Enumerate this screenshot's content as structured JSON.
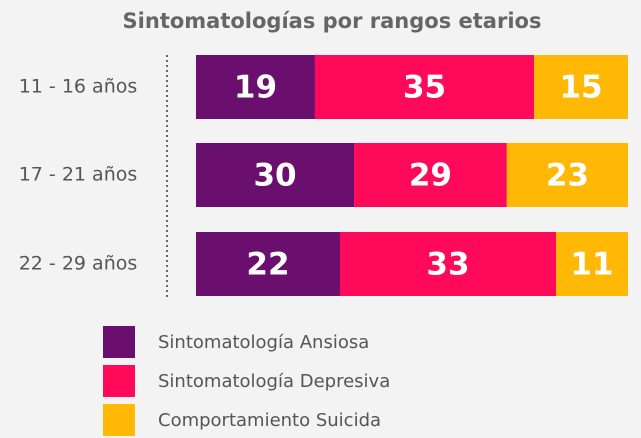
{
  "chart_data": {
    "type": "bar",
    "orientation": "horizontal",
    "stacked": true,
    "title": "Sintomatologías por rangos etarios",
    "categories": [
      "11 - 16 años",
      "17 - 21 años",
      "22 - 29 años"
    ],
    "series": [
      {
        "name": "Sintomatología Ansiosa",
        "color": "#6b0f6f",
        "values": [
          19,
          30,
          22
        ]
      },
      {
        "name": "Sintomatología Depresiva",
        "color": "#ff0a5b",
        "values": [
          35,
          29,
          33
        ]
      },
      {
        "name": "Comportamiento Suicida",
        "color": "#ffb803",
        "values": [
          15,
          23,
          11
        ]
      }
    ]
  }
}
